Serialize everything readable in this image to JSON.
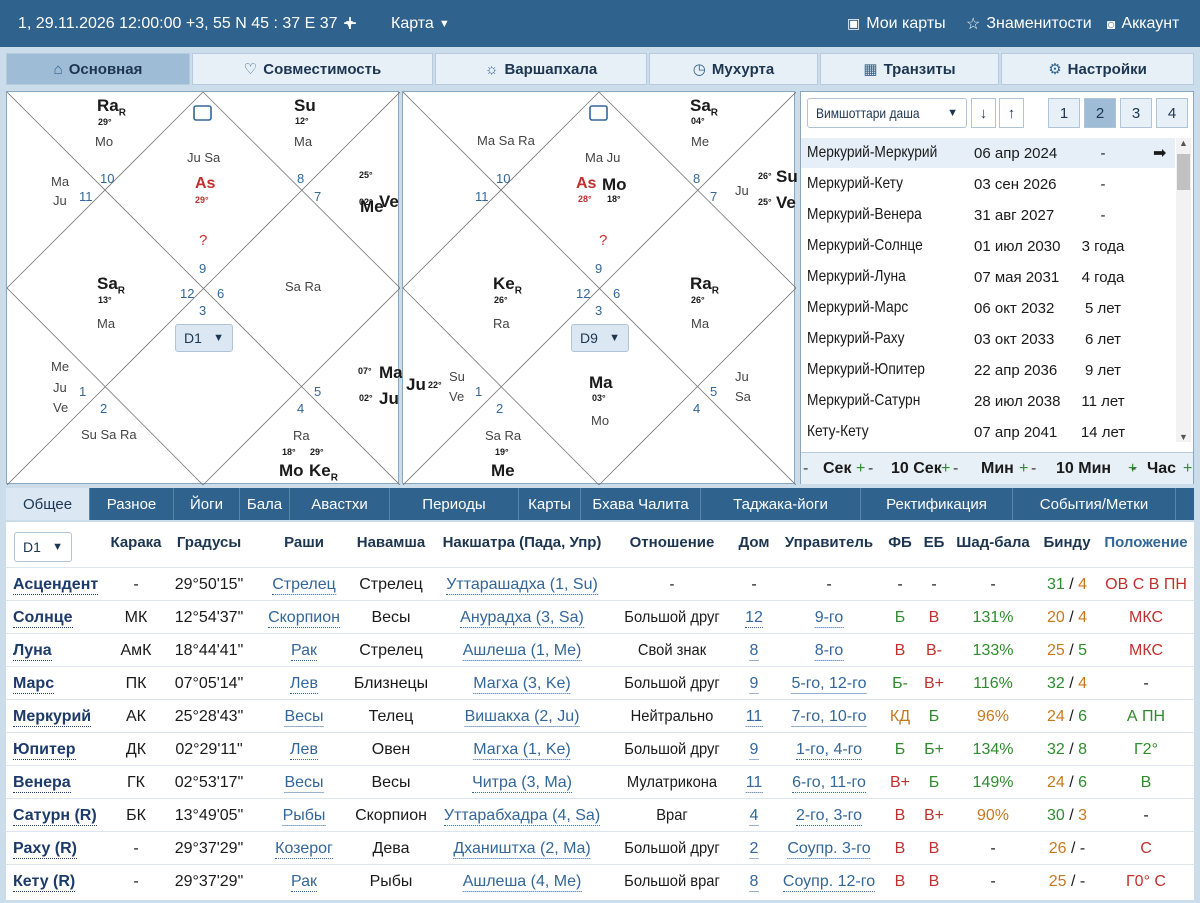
{
  "topbar": {
    "datetime": "1, 29.11.2026 12:00:00 +3, 55 N 45 : 37 E 37",
    "add": "+",
    "map_label": "Карта",
    "my_charts": "Мои карты",
    "celebrities": "Знаменитости",
    "account": "Аккаунт"
  },
  "nav_tabs": [
    {
      "label": "Основная",
      "icon": "home-icon"
    },
    {
      "label": "Совместимость",
      "icon": "heart-icon"
    },
    {
      "label": "Варшапхала",
      "icon": "sun-icon"
    },
    {
      "label": "Мухурта",
      "icon": "clock-icon"
    },
    {
      "label": "Транзиты",
      "icon": "calendar-icon"
    },
    {
      "label": "Настройки",
      "icon": "gear-icon"
    }
  ],
  "chart_d1": {
    "select": "D1",
    "house_numbers": [
      "10",
      "11",
      "9",
      "12",
      "3",
      "6",
      "8",
      "7",
      "5",
      "2",
      "1",
      "4"
    ],
    "texts": [
      {
        "k": "pl",
        "t": "Ra",
        "s": "R"
      },
      {
        "k": "dg",
        "t": "29°"
      },
      {
        "k": "lo",
        "t": "Mo"
      },
      {
        "k": "pl",
        "t": "Su"
      },
      {
        "k": "dg",
        "t": "12°"
      },
      {
        "k": "lo",
        "t": "Ma"
      },
      {
        "k": "lo",
        "t": "Ju Sa"
      },
      {
        "k": "as",
        "t": "As"
      },
      {
        "k": "asd",
        "t": "29°"
      },
      {
        "k": "qm",
        "t": "?"
      },
      {
        "k": "lo",
        "t": "Ma"
      },
      {
        "k": "lo",
        "t": "Ju"
      },
      {
        "k": "dg",
        "t": "25°"
      },
      {
        "k": "pl",
        "t": "Me"
      },
      {
        "k": "dg",
        "t": "02°"
      },
      {
        "k": "pl",
        "t": "Ve"
      },
      {
        "k": "pl",
        "t": "Sa",
        "s": "R"
      },
      {
        "k": "dg",
        "t": "13°"
      },
      {
        "k": "lo",
        "t": "Ma"
      },
      {
        "k": "lo",
        "t": "Sa Ra"
      },
      {
        "k": "lo",
        "t": "Me"
      },
      {
        "k": "lo",
        "t": "Ju"
      },
      {
        "k": "lo",
        "t": "Ve"
      },
      {
        "k": "lo",
        "t": "Su Sa Ra"
      },
      {
        "k": "dg",
        "t": "07°"
      },
      {
        "k": "pl",
        "t": "Ma"
      },
      {
        "k": "dg",
        "t": "02°"
      },
      {
        "k": "pl",
        "t": "Ju"
      },
      {
        "k": "lo",
        "t": "Ra"
      },
      {
        "k": "dg",
        "t": "18°"
      },
      {
        "k": "dg",
        "t": "29°"
      },
      {
        "k": "pl",
        "t": "Mo"
      },
      {
        "k": "pl",
        "t": "Ke",
        "s": "R"
      }
    ]
  },
  "chart_d9": {
    "select": "D9",
    "house_numbers": [
      "10",
      "11",
      "9",
      "12",
      "3",
      "6",
      "8",
      "7",
      "5",
      "2",
      "1",
      "4"
    ],
    "texts": [
      {
        "k": "lo",
        "t": "Ma Sa Ra"
      },
      {
        "k": "pl",
        "t": "Sa",
        "s": "R"
      },
      {
        "k": "dg",
        "t": "04°"
      },
      {
        "k": "lo",
        "t": "Me"
      },
      {
        "k": "lo",
        "t": "Ma Ju"
      },
      {
        "k": "as",
        "t": "As"
      },
      {
        "k": "pl",
        "t": "Mo"
      },
      {
        "k": "asd",
        "t": "28°"
      },
      {
        "k": "dg",
        "t": "18°"
      },
      {
        "k": "qm",
        "t": "?"
      },
      {
        "k": "dg",
        "t": "26°"
      },
      {
        "k": "pl",
        "t": "Su"
      },
      {
        "k": "lo",
        "t": "Ju"
      },
      {
        "k": "dg",
        "t": "25°"
      },
      {
        "k": "pl",
        "t": "Ve"
      },
      {
        "k": "pl",
        "t": "Ke",
        "s": "R"
      },
      {
        "k": "dg",
        "t": "26°"
      },
      {
        "k": "lo",
        "t": "Ra"
      },
      {
        "k": "pl",
        "t": "Ra",
        "s": "R"
      },
      {
        "k": "dg",
        "t": "26°"
      },
      {
        "k": "lo",
        "t": "Ma"
      },
      {
        "k": "pl",
        "t": "Ju"
      },
      {
        "k": "dg",
        "t": "22°"
      },
      {
        "k": "lo",
        "t": "Su"
      },
      {
        "k": "lo",
        "t": "Ve"
      },
      {
        "k": "pl",
        "t": "Ma"
      },
      {
        "k": "dg",
        "t": "03°"
      },
      {
        "k": "lo",
        "t": "Mo"
      },
      {
        "k": "lo",
        "t": "Ju"
      },
      {
        "k": "lo",
        "t": "Sa"
      },
      {
        "k": "lo",
        "t": "Sa Ra"
      },
      {
        "k": "dg",
        "t": "19°"
      },
      {
        "k": "pl",
        "t": "Me"
      }
    ]
  },
  "dasha": {
    "select": "Вимшоттари даша",
    "buttons": [
      "1",
      "2",
      "3",
      "4"
    ],
    "rows": [
      {
        "name": "Меркурий-Меркурий",
        "date": "06 апр 2024",
        "dur": "-",
        "arrow": "➡"
      },
      {
        "name": "Меркурий-Кету",
        "date": "03 сен 2026",
        "dur": "-"
      },
      {
        "name": "Меркурий-Венера",
        "date": "31 авг 2027",
        "dur": "-"
      },
      {
        "name": "Меркурий-Солнце",
        "date": "01 июл 2030",
        "dur": "3 года"
      },
      {
        "name": "Меркурий-Луна",
        "date": "07 мая 2031",
        "dur": "4 года"
      },
      {
        "name": "Меркурий-Марс",
        "date": "06 окт 2032",
        "dur": "5 лет"
      },
      {
        "name": "Меркурий-Раху",
        "date": "03 окт 2033",
        "dur": "6 лет"
      },
      {
        "name": "Меркурий-Юпитер",
        "date": "22 апр 2036",
        "dur": "9 лет"
      },
      {
        "name": "Меркурий-Сатурн",
        "date": "28 июл 2038",
        "dur": "11 лет"
      },
      {
        "name": "Кету-Кету",
        "date": "07 апр 2041",
        "dur": "14 лет"
      }
    ],
    "steps": [
      "Сек",
      "10 Сек",
      "Мин",
      "10 Мин",
      "Час"
    ],
    "minus": "-",
    "plus": "+"
  },
  "bottom_tabs": [
    "Общее",
    "Разное",
    "Йоги",
    "Бала",
    "Авастхи",
    "Периоды",
    "Карты",
    "Бхава Чалита",
    "Таджака-йоги",
    "Ректификация",
    "События/Метки"
  ],
  "table": {
    "select": "D1",
    "headers": [
      "Карака",
      "Градусы",
      "Раши",
      "Навамша",
      "Накшатра (Пада, Упр)",
      "Отношение",
      "Дом",
      "Управитель",
      "ФБ",
      "ЕБ",
      "Шад-бала",
      "Бинду",
      "Положение"
    ],
    "rows": [
      [
        "Асцендент",
        "-",
        "29°50'15\"",
        "Стрелец",
        "Стрелец",
        "Уттарашадха (1, Su)",
        "-",
        "-",
        "-",
        "-",
        "-",
        "-",
        "31",
        "4",
        "ОВ С В ПН"
      ],
      [
        "Солнце",
        "МК",
        "12°54'37\"",
        "Скорпион",
        "Весы",
        "Анурадха (3, Sa)",
        "Большой друг",
        "12",
        "9-го",
        "Б",
        "В",
        "131%",
        "20",
        "4",
        "МКС"
      ],
      [
        "Луна",
        "АмК",
        "18°44'41\"",
        "Рак",
        "Стрелец",
        "Ашлеша (1, Me)",
        "Свой знак",
        "8",
        "8-го",
        "В",
        "В-",
        "133%",
        "25",
        "5",
        "МКС"
      ],
      [
        "Марс",
        "ПК",
        "07°05'14\"",
        "Лев",
        "Близнецы",
        "Магха (3, Ke)",
        "Большой друг",
        "9",
        "5-го, 12-го",
        "Б-",
        "В+",
        "116%",
        "32",
        "4",
        "-"
      ],
      [
        "Меркурий",
        "АК",
        "25°28'43\"",
        "Весы",
        "Телец",
        "Вишакха (2, Ju)",
        "Нейтрально",
        "11",
        "7-го, 10-го",
        "КД",
        "Б",
        "96%",
        "24",
        "6",
        "А ПН"
      ],
      [
        "Юпитер",
        "ДК",
        "02°29'11\"",
        "Лев",
        "Овен",
        "Магха (1, Ke)",
        "Большой друг",
        "9",
        "1-го, 4-го",
        "Б",
        "Б+",
        "134%",
        "32",
        "8",
        "Г2°"
      ],
      [
        "Венера",
        "ГК",
        "02°53'17\"",
        "Весы",
        "Весы",
        "Читра (3, Ma)",
        "Мулатрикона",
        "11",
        "6-го, 11-го",
        "В+",
        "Б",
        "149%",
        "24",
        "6",
        "В"
      ],
      [
        "Сатурн (R)",
        "БК",
        "13°49'05\"",
        "Рыбы",
        "Скорпион",
        "Уттарабхадра (4, Sa)",
        "Враг",
        "4",
        "2-го, 3-го",
        "В",
        "В+",
        "90%",
        "30",
        "3",
        "-"
      ],
      [
        "Раху (R)",
        "-",
        "29°37'29\"",
        "Козерог",
        "Дева",
        "Дхаништха (2, Ma)",
        "Большой друг",
        "2",
        "Соупр. 3-го",
        "В",
        "В",
        "-",
        "26",
        "-",
        "С"
      ],
      [
        "Кету (R)",
        "-",
        "29°37'29\"",
        "Рак",
        "Рыбы",
        "Ашлеша (4, Me)",
        "Большой враг",
        "8",
        "Соупр. 12-го",
        "В",
        "В",
        "-",
        "25",
        "-",
        "Г0° С"
      ]
    ]
  },
  "colors": {
    "bar": "#2f628c",
    "green": "#2e8b2e",
    "red": "#c0302e",
    "orange": "#c8781e"
  }
}
